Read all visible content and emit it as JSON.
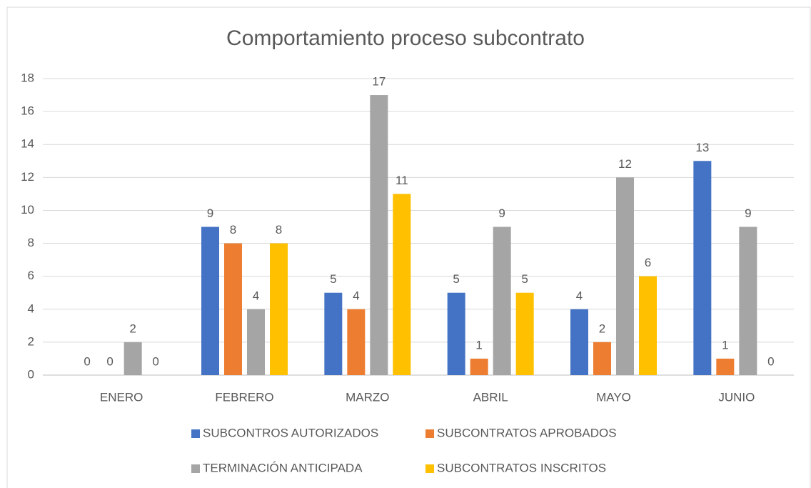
{
  "chart_data": {
    "type": "bar",
    "title": "Comportamiento proceso subcontrato",
    "categories": [
      "ENERO",
      "FEBRERO",
      "MARZO",
      "ABRIL",
      "MAYO",
      "JUNIO"
    ],
    "series": [
      {
        "name": "SUBCONTROS AUTORIZADOS",
        "color": "#4472c4",
        "values": [
          0,
          9,
          5,
          5,
          4,
          13
        ]
      },
      {
        "name": "SUBCONTRATOS APROBADOS",
        "color": "#ed7d31",
        "values": [
          0,
          8,
          4,
          1,
          2,
          1
        ]
      },
      {
        "name": "TERMINACIÓN ANTICIPADA",
        "color": "#a5a5a5",
        "values": [
          2,
          4,
          17,
          9,
          12,
          9
        ]
      },
      {
        "name": "SUBCONTRATOS INSCRITOS",
        "color": "#ffc000",
        "values": [
          0,
          8,
          11,
          5,
          6,
          0
        ]
      }
    ],
    "ylim": [
      0,
      18
    ],
    "yticks": [
      0,
      2,
      4,
      6,
      8,
      10,
      12,
      14,
      16,
      18
    ],
    "grid": true,
    "legend": "bottom"
  }
}
